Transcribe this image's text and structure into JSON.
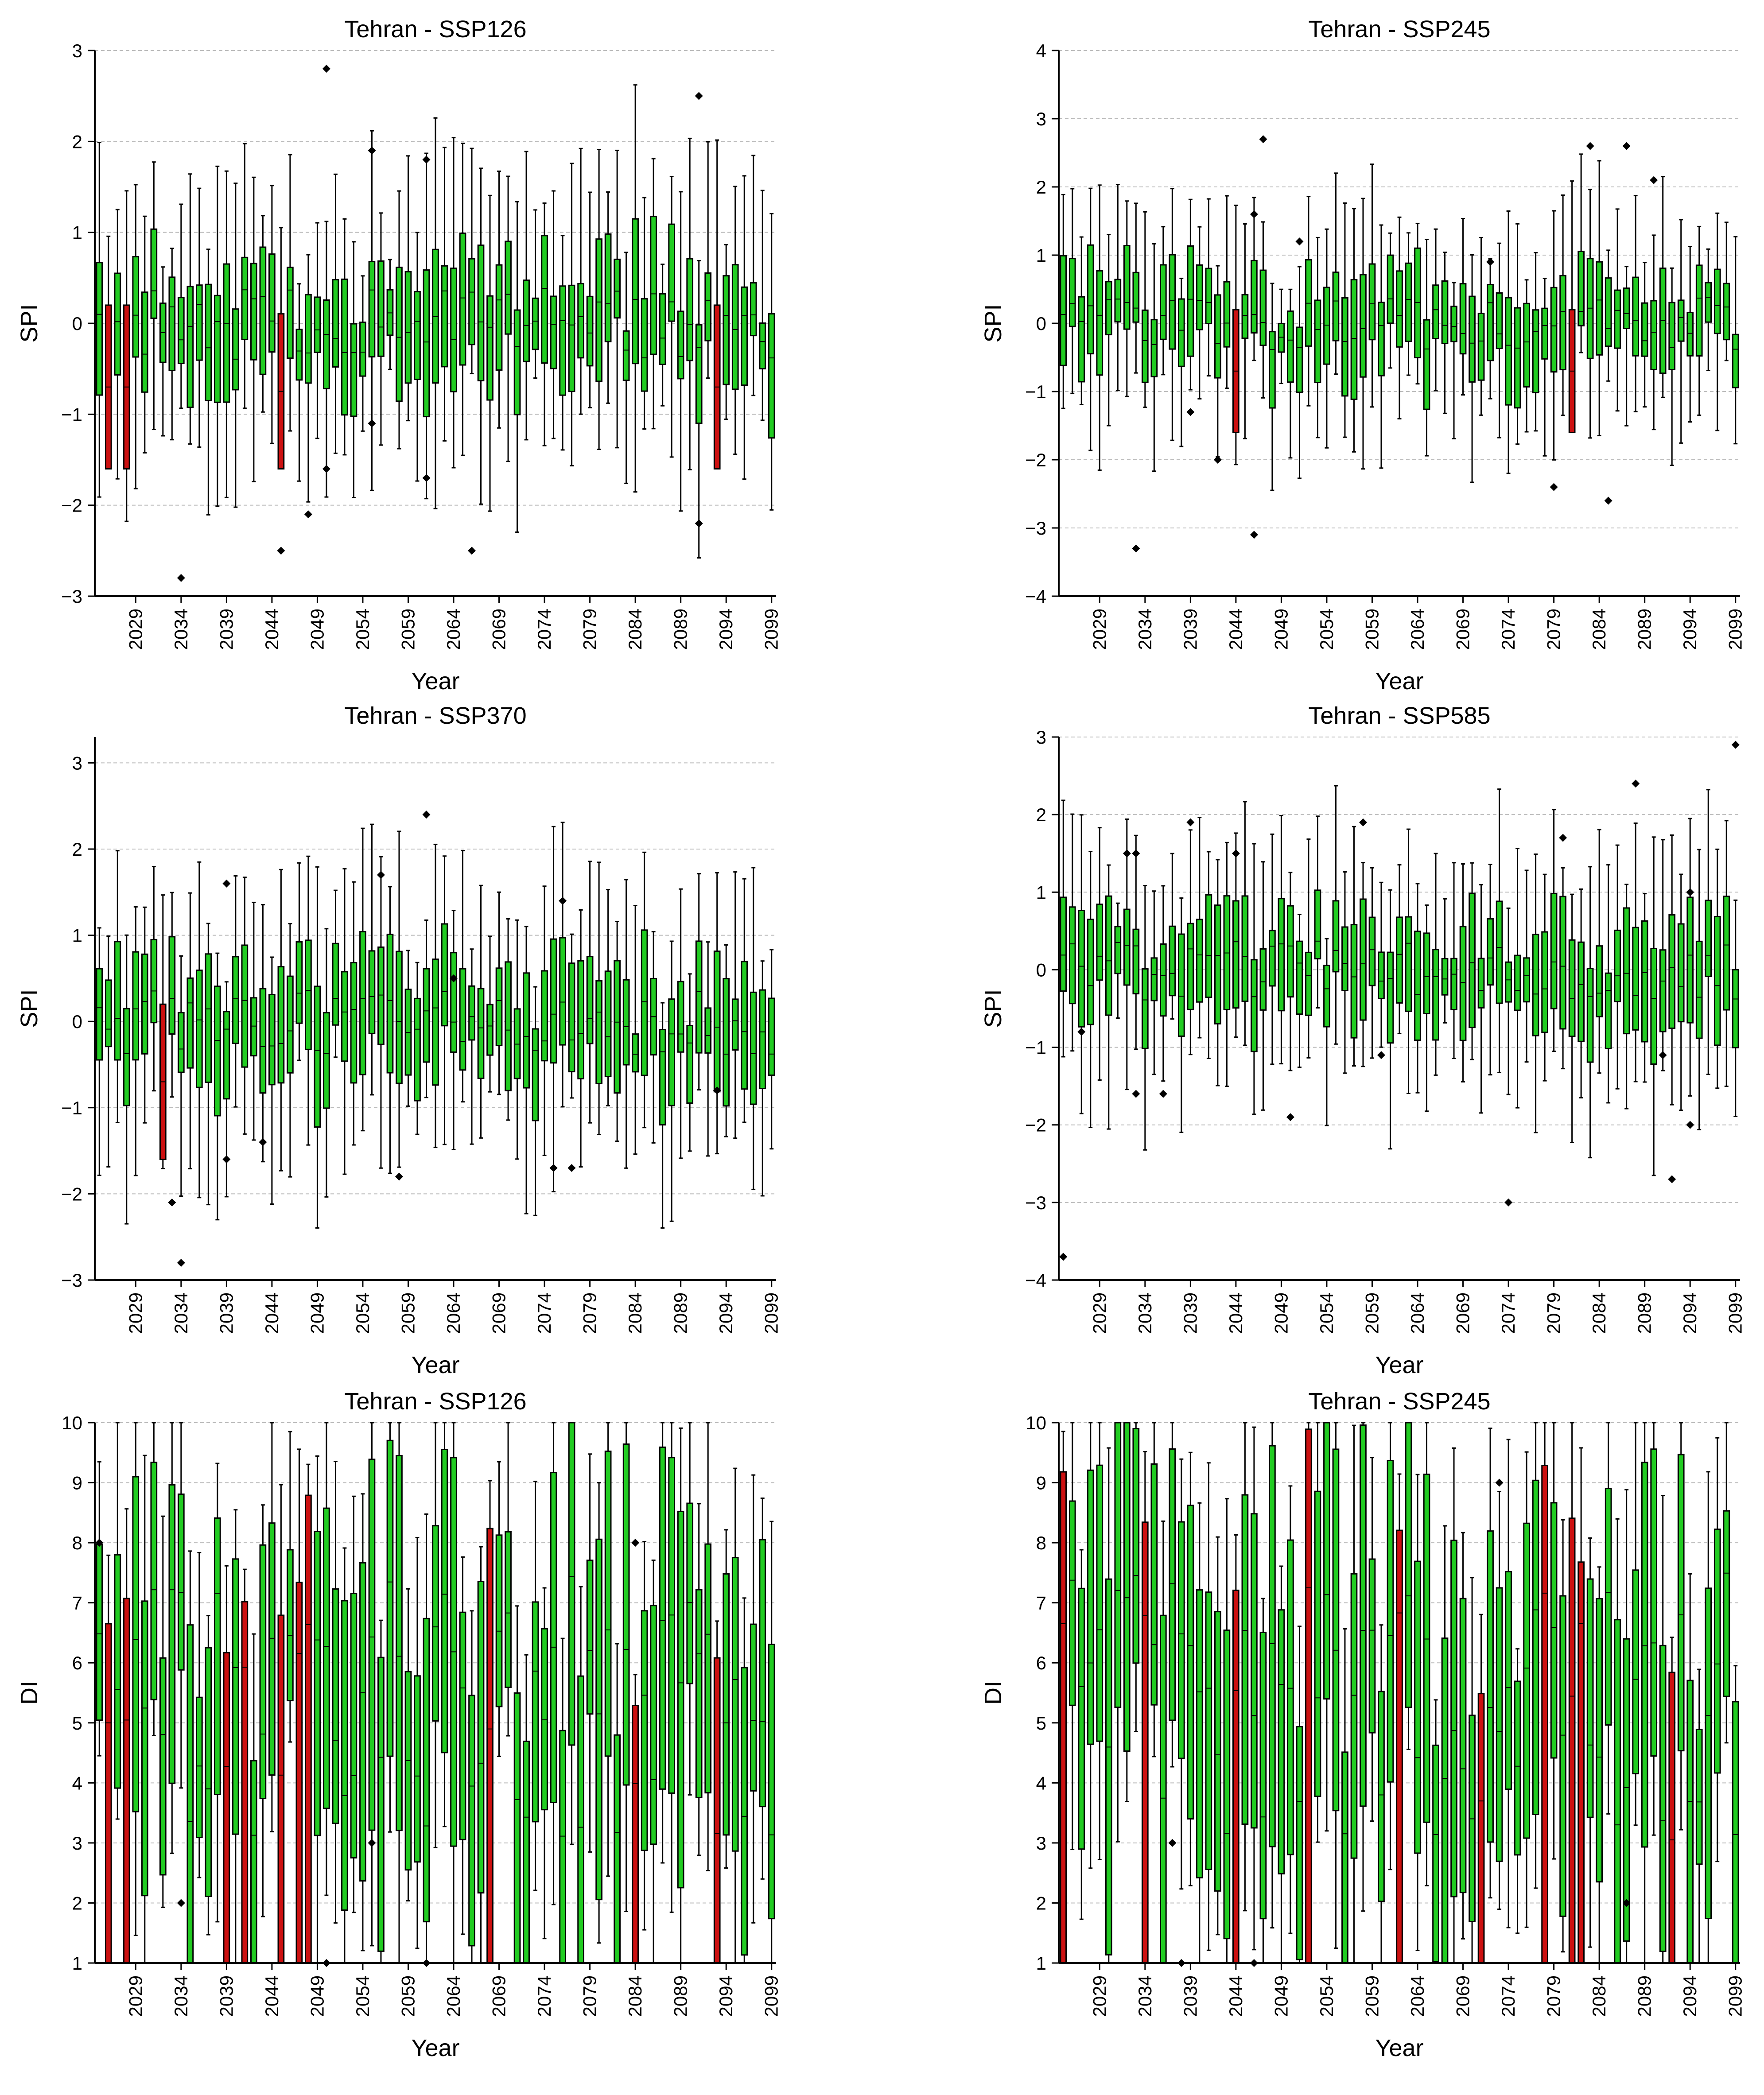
{
  "colors": {
    "box_normal": "#22cc22",
    "box_extreme": "#cc1111",
    "grid": "#bbbbbb",
    "axis": "#000000",
    "outlier": "#000000"
  },
  "chart_data": [
    {
      "type": "box",
      "title": "Tehran - SSP126",
      "xlabel": "Year",
      "ylabel": "SPI",
      "ylim": [
        -3,
        3
      ],
      "yticks": [
        "−3",
        "−2",
        "−1",
        "0",
        "1",
        "2",
        "3"
      ],
      "ytick_values": [
        -3,
        -2,
        -1,
        0,
        1,
        2,
        3
      ],
      "xticks": [
        "2029",
        "2034",
        "2039",
        "2044",
        "2049",
        "2054",
        "2059",
        "2064",
        "2069",
        "2074",
        "2079",
        "2084",
        "2089",
        "2094",
        "2099"
      ],
      "year_range": [
        2025,
        2099
      ],
      "grid": "horizontal-dashed",
      "highlight_color_meaning": "red boxes",
      "highlight_years": [
        2026,
        2028,
        2045,
        2093
      ],
      "outliers": [
        {
          "year": 2034,
          "value": -2.8
        },
        {
          "year": 2045,
          "value": -2.5
        },
        {
          "year": 2048,
          "value": -2.1
        },
        {
          "year": 2050,
          "value": 2.8
        },
        {
          "year": 2050,
          "value": -1.6
        },
        {
          "year": 2055,
          "value": 1.9
        },
        {
          "year": 2055,
          "value": -1.1
        },
        {
          "year": 2061,
          "value": 1.8
        },
        {
          "year": 2061,
          "value": -1.7
        },
        {
          "year": 2066,
          "value": -2.5
        },
        {
          "year": 2091,
          "value": 2.5
        },
        {
          "year": 2091,
          "value": -2.2
        }
      ]
    },
    {
      "type": "box",
      "title": "Tehran - SSP245",
      "xlabel": "Year",
      "ylabel": "SPI",
      "ylim": [
        -4,
        4
      ],
      "yticks": [
        "−4",
        "−3",
        "−2",
        "−1",
        "0",
        "1",
        "2",
        "3",
        "4"
      ],
      "ytick_values": [
        -4,
        -3,
        -2,
        -1,
        0,
        1,
        2,
        3,
        4
      ],
      "xticks": [
        "2029",
        "2034",
        "2039",
        "2044",
        "2049",
        "2054",
        "2059",
        "2064",
        "2069",
        "2074",
        "2079",
        "2084",
        "2089",
        "2094",
        "2099"
      ],
      "year_range": [
        2025,
        2099
      ],
      "grid": "horizontal-dashed",
      "highlight_years": [
        2044,
        2081
      ],
      "outliers": [
        {
          "year": 2033,
          "value": -3.3
        },
        {
          "year": 2039,
          "value": -1.3
        },
        {
          "year": 2042,
          "value": -2.0
        },
        {
          "year": 2046,
          "value": 1.6
        },
        {
          "year": 2046,
          "value": -3.1
        },
        {
          "year": 2047,
          "value": 2.7
        },
        {
          "year": 2051,
          "value": 1.2
        },
        {
          "year": 2072,
          "value": 0.9
        },
        {
          "year": 2079,
          "value": -2.4
        },
        {
          "year": 2083,
          "value": 2.6
        },
        {
          "year": 2085,
          "value": -2.6
        },
        {
          "year": 2087,
          "value": 2.6
        },
        {
          "year": 2090,
          "value": 2.1
        }
      ]
    },
    {
      "type": "box",
      "title": "Tehran - SSP370",
      "xlabel": "Year",
      "ylabel": "SPI",
      "ylim": [
        -3,
        3.3
      ],
      "yticks": [
        "−3",
        "−2",
        "−1",
        "0",
        "1",
        "2",
        "3"
      ],
      "ytick_values": [
        -3,
        -2,
        -1,
        0,
        1,
        2,
        3
      ],
      "xticks": [
        "2029",
        "2034",
        "2039",
        "2044",
        "2049",
        "2054",
        "2059",
        "2064",
        "2069",
        "2074",
        "2079",
        "2084",
        "2089",
        "2094",
        "2099"
      ],
      "year_range": [
        2025,
        2099
      ],
      "grid": "horizontal-dashed",
      "highlight_years": [
        2032
      ],
      "outliers": [
        {
          "year": 2033,
          "value": -2.1
        },
        {
          "year": 2034,
          "value": -2.8
        },
        {
          "year": 2039,
          "value": 1.6
        },
        {
          "year": 2039,
          "value": -1.6
        },
        {
          "year": 2043,
          "value": -1.4
        },
        {
          "year": 2056,
          "value": 1.7
        },
        {
          "year": 2058,
          "value": -1.8
        },
        {
          "year": 2061,
          "value": 2.4
        },
        {
          "year": 2064,
          "value": 0.5
        },
        {
          "year": 2075,
          "value": -1.7
        },
        {
          "year": 2076,
          "value": 1.4
        },
        {
          "year": 2077,
          "value": -1.7
        },
        {
          "year": 2093,
          "value": -0.8
        }
      ]
    },
    {
      "type": "box",
      "title": "Tehran - SSP585",
      "xlabel": "Year",
      "ylabel": "SPI",
      "ylim": [
        -4,
        3
      ],
      "yticks": [
        "−4",
        "−3",
        "−2",
        "−1",
        "0",
        "1",
        "2",
        "3"
      ],
      "ytick_values": [
        -4,
        -3,
        -2,
        -1,
        0,
        1,
        2,
        3
      ],
      "xticks": [
        "2029",
        "2034",
        "2039",
        "2044",
        "2049",
        "2054",
        "2059",
        "2064",
        "2069",
        "2074",
        "2079",
        "2084",
        "2089",
        "2094",
        "2099"
      ],
      "year_range": [
        2025,
        2099
      ],
      "grid": "horizontal-dashed",
      "highlight_years": [],
      "outliers": [
        {
          "year": 2025,
          "value": -3.7
        },
        {
          "year": 2027,
          "value": -0.8
        },
        {
          "year": 2032,
          "value": 1.5
        },
        {
          "year": 2033,
          "value": 1.5
        },
        {
          "year": 2033,
          "value": -1.6
        },
        {
          "year": 2036,
          "value": -1.6
        },
        {
          "year": 2039,
          "value": 1.9
        },
        {
          "year": 2044,
          "value": 1.5
        },
        {
          "year": 2050,
          "value": -1.9
        },
        {
          "year": 2058,
          "value": 1.9
        },
        {
          "year": 2060,
          "value": -1.1
        },
        {
          "year": 2074,
          "value": -3.0
        },
        {
          "year": 2080,
          "value": 1.7
        },
        {
          "year": 2088,
          "value": 2.4
        },
        {
          "year": 2091,
          "value": -1.1
        },
        {
          "year": 2092,
          "value": -2.7
        },
        {
          "year": 2094,
          "value": 1.0
        },
        {
          "year": 2094,
          "value": -2.0
        },
        {
          "year": 2099,
          "value": 2.9
        }
      ]
    },
    {
      "type": "box",
      "title": "Tehran - SSP126",
      "xlabel": "Year",
      "ylabel": "DI",
      "ylim": [
        1,
        10
      ],
      "yticks": [
        "1",
        "2",
        "3",
        "4",
        "5",
        "6",
        "7",
        "8",
        "9",
        "10"
      ],
      "ytick_values": [
        1,
        2,
        3,
        4,
        5,
        6,
        7,
        8,
        9,
        10
      ],
      "xticks": [
        "2029",
        "2034",
        "2039",
        "2044",
        "2049",
        "2054",
        "2059",
        "2064",
        "2069",
        "2074",
        "2079",
        "2084",
        "2089",
        "2094",
        "2099"
      ],
      "year_range": [
        2025,
        2099
      ],
      "grid": "horizontal-dashed",
      "highlight_years": [
        2026,
        2028,
        2039,
        2041,
        2045,
        2047,
        2048,
        2068,
        2084,
        2093
      ],
      "outliers": [
        {
          "year": 2025,
          "value": 8
        },
        {
          "year": 2034,
          "value": 2
        },
        {
          "year": 2050,
          "value": 1
        },
        {
          "year": 2055,
          "value": 3
        },
        {
          "year": 2061,
          "value": 1
        },
        {
          "year": 2084,
          "value": 8
        }
      ]
    },
    {
      "type": "box",
      "title": "Tehran - SSP245",
      "xlabel": "Year",
      "ylabel": "DI",
      "ylim": [
        1,
        10
      ],
      "yticks": [
        "1",
        "2",
        "3",
        "4",
        "5",
        "6",
        "7",
        "8",
        "9",
        "10"
      ],
      "ytick_values": [
        1,
        2,
        3,
        4,
        5,
        6,
        7,
        8,
        9,
        10
      ],
      "xticks": [
        "2029",
        "2034",
        "2039",
        "2044",
        "2049",
        "2054",
        "2059",
        "2064",
        "2069",
        "2074",
        "2079",
        "2084",
        "2089",
        "2094",
        "2099"
      ],
      "year_range": [
        2025,
        2099
      ],
      "grid": "horizontal-dashed",
      "highlight_years": [
        2025,
        2034,
        2044,
        2052,
        2062,
        2071,
        2078,
        2081,
        2082,
        2092
      ],
      "outliers": [
        {
          "year": 2037,
          "value": 3
        },
        {
          "year": 2038,
          "value": 1
        },
        {
          "year": 2046,
          "value": 1
        },
        {
          "year": 2073,
          "value": 9
        },
        {
          "year": 2087,
          "value": 2
        }
      ]
    }
  ]
}
